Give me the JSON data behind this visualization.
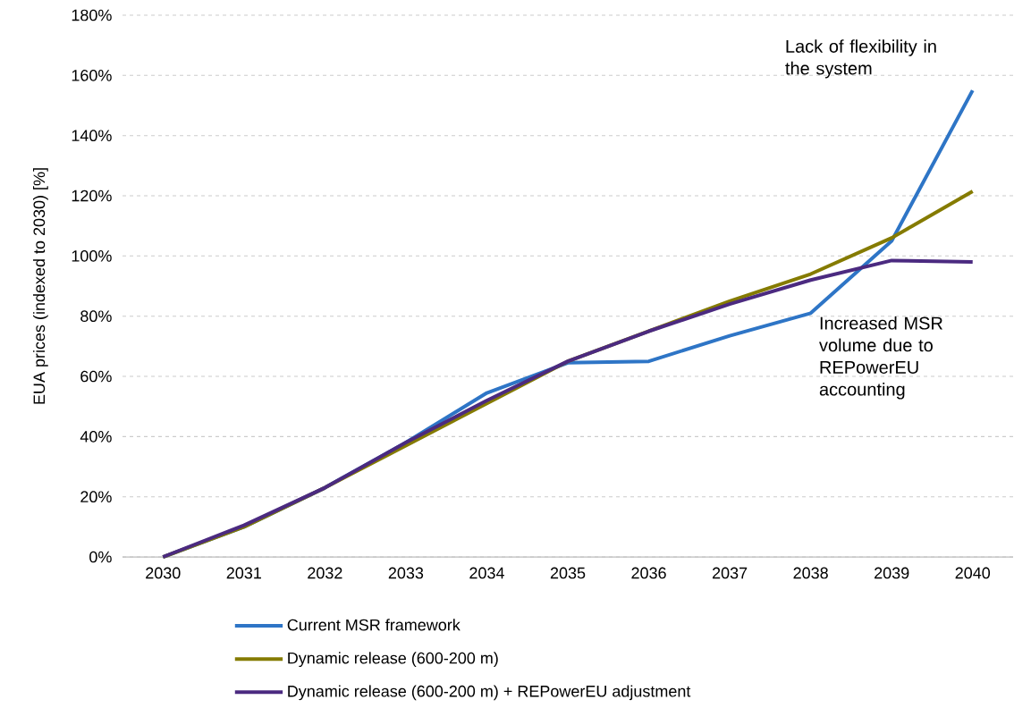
{
  "chart_data": {
    "type": "line",
    "ylabel": "EUA prices (indexed to 2030) [%]",
    "categories": [
      "2030",
      "2031",
      "2032",
      "2033",
      "2034",
      "2035",
      "2036",
      "2037",
      "2038",
      "2039",
      "2040"
    ],
    "series": [
      {
        "name": "Current MSR framework",
        "color": "#2e75c6",
        "values": [
          0,
          10,
          23,
          38,
          54.5,
          64.5,
          65,
          73.5,
          81,
          105,
          155
        ]
      },
      {
        "name": "Dynamic release (600-200 m)",
        "color": "#857b00",
        "values": [
          0,
          10,
          23,
          37,
          51,
          65,
          75,
          85,
          94,
          106,
          121.5
        ]
      },
      {
        "name": "Dynamic release (600-200 m) + REPowerEU adjustment",
        "color": "#4b2a80",
        "values": [
          0,
          10.5,
          23,
          38,
          52,
          65,
          75,
          84,
          92,
          98.5,
          98
        ]
      }
    ],
    "ylim": [
      0,
      180
    ],
    "yticks": [
      {
        "value": 0,
        "label": "0%"
      },
      {
        "value": 20,
        "label": "20%"
      },
      {
        "value": 40,
        "label": "40%"
      },
      {
        "value": 60,
        "label": "60%"
      },
      {
        "value": 80,
        "label": "80%"
      },
      {
        "value": 100,
        "label": "100%"
      },
      {
        "value": 120,
        "label": "120%"
      },
      {
        "value": 140,
        "label": "140%"
      },
      {
        "value": 160,
        "label": "160%"
      },
      {
        "value": 180,
        "label": "180%"
      }
    ],
    "grid": "y",
    "legend": "bottom",
    "marker": "none",
    "line_style": "solid",
    "annotations": [
      "Lack of flexibility in the system",
      "Increased MSR volume due to REPowerEU accounting"
    ]
  }
}
